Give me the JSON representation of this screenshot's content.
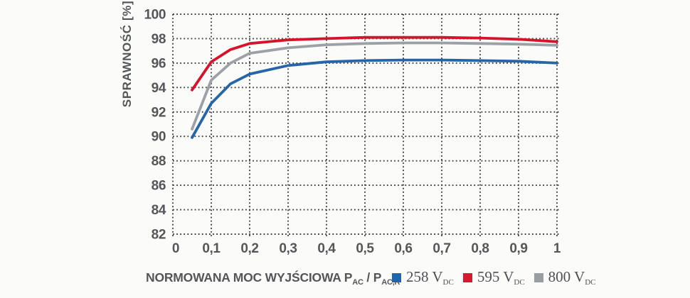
{
  "axes": {
    "y_title": "SPRAWNOŚĆ [%]",
    "x_title": {
      "p1": "NORMOWANA MOC WYJŚCIOWA P",
      "s1": "AC",
      "p2": " / P",
      "s2": "AC,R"
    }
  },
  "legend": {
    "items": [
      {
        "value": "258 V",
        "sub": "DC",
        "color": "#1e66ac"
      },
      {
        "value": "595 V",
        "sub": "DC",
        "color": "#d7182f"
      },
      {
        "value": "800 V",
        "sub": "DC",
        "color": "#989fa3"
      }
    ]
  },
  "chart_data": {
    "type": "line",
    "title": "",
    "xlabel": "NORMOWANA MOC WYJŚCIOWA P_AC / P_AC,R",
    "ylabel": "SPRAWNOŚĆ [%]",
    "xlim": [
      0,
      1
    ],
    "ylim": [
      82,
      100
    ],
    "grid": "dotted",
    "grid_color": "#3d3d40",
    "legend_position": "bottom-right",
    "x_ticks": {
      "values": [
        0,
        0.1,
        0.2,
        0.3,
        0.4,
        0.5,
        0.6,
        0.7,
        0.8,
        0.9,
        1
      ],
      "labels": [
        "0",
        "0,1",
        "0,2",
        "0,3",
        "0,4",
        "0,5",
        "0,6",
        "0,7",
        "0,8",
        "0,9",
        "1"
      ]
    },
    "y_ticks": {
      "values": [
        82,
        84,
        86,
        88,
        90,
        92,
        94,
        96,
        98,
        100
      ],
      "labels": [
        "82",
        "84",
        "86",
        "88",
        "90",
        "92",
        "94",
        "96",
        "98",
        "100"
      ]
    },
    "x": [
      0.05,
      0.1,
      0.15,
      0.2,
      0.3,
      0.4,
      0.5,
      0.6,
      0.7,
      0.8,
      0.9,
      1.0
    ],
    "series": [
      {
        "name": "258 V_DC",
        "color": "#2565a8",
        "values": [
          89.9,
          92.7,
          94.3,
          95.1,
          95.8,
          96.1,
          96.2,
          96.25,
          96.25,
          96.2,
          96.15,
          96.0
        ]
      },
      {
        "name": "595 V_DC",
        "color": "#d5142c",
        "values": [
          93.8,
          96.1,
          97.1,
          97.6,
          97.9,
          98.0,
          98.1,
          98.1,
          98.1,
          98.05,
          97.95,
          97.75
        ]
      },
      {
        "name": "800 V_DC",
        "color": "#9ca1a5",
        "values": [
          90.6,
          94.6,
          96.0,
          96.8,
          97.25,
          97.5,
          97.6,
          97.65,
          97.65,
          97.6,
          97.55,
          97.45
        ]
      }
    ]
  }
}
